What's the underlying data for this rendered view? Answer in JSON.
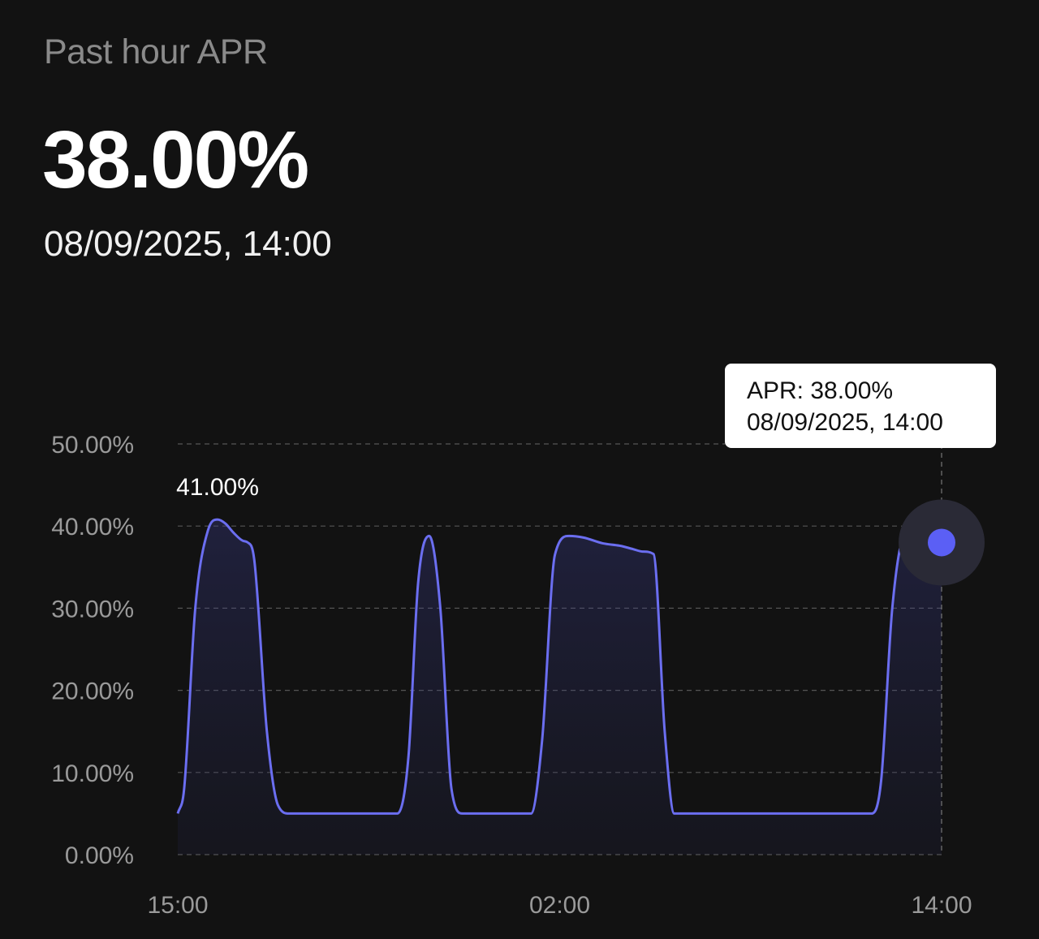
{
  "header": {
    "label": "Past hour APR",
    "value": "38.00%",
    "date": "08/09/2025, 14:00"
  },
  "tooltip": {
    "line1": "APR: 38.00%",
    "line2": "08/09/2025, 14:00"
  },
  "colors": {
    "background": "#121212",
    "line": "#6B6EF0",
    "marker": "#5B5FF5",
    "grid": "#555555",
    "axis_text": "#9a9a9a"
  },
  "chart_data": {
    "type": "area",
    "xlabel": "",
    "ylabel": "",
    "x_ticks": [
      "15:00",
      "02:00",
      "14:00"
    ],
    "y_ticks": [
      "0.00%",
      "10.00%",
      "20.00%",
      "30.00%",
      "40.00%",
      "50.00%"
    ],
    "ylim": [
      0,
      50
    ],
    "xlim": [
      0,
      24
    ],
    "grid": true,
    "peak_label": "41.00%",
    "series": [
      {
        "x": [
          0,
          0.2,
          0.55,
          0.95,
          1.25,
          1.5,
          1.75,
          2.05,
          2.2,
          2.4,
          2.8,
          3.15,
          3.5,
          6.9,
          7.25,
          7.55,
          7.9,
          8.25,
          8.6,
          8.95,
          11.1,
          11.45,
          11.85,
          12.3,
          12.75,
          13.35,
          13.9,
          14.3,
          14.6,
          14.95,
          15.3,
          15.6,
          21.8,
          22.1,
          22.45,
          22.85,
          23.3,
          24
        ],
        "values": [
          5,
          8,
          30,
          39.5,
          40.8,
          40.3,
          39.2,
          38.2,
          38,
          36,
          15,
          6,
          5,
          5,
          12,
          33,
          38.8,
          30,
          8,
          5,
          5,
          14,
          36.5,
          38.8,
          38.6,
          37.9,
          37.6,
          37.2,
          36.9,
          36.6,
          15,
          5,
          5,
          9,
          30,
          38.7,
          38.5,
          38
        ]
      }
    ],
    "highlight": {
      "x": 24,
      "value": 38
    }
  }
}
